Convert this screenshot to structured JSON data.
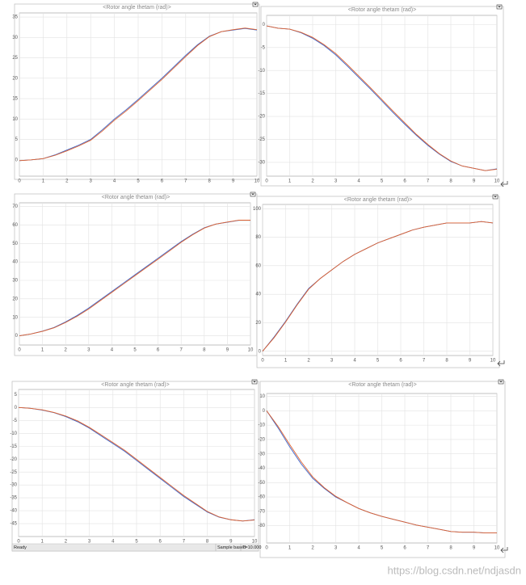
{
  "chart_data": [
    {
      "type": "line",
      "title": "<Rotor angle thetam (rad)>",
      "x": [
        0,
        0.5,
        1,
        1.5,
        2,
        2.5,
        3,
        3.5,
        4,
        4.5,
        5,
        5.5,
        6,
        6.5,
        7,
        7.5,
        8,
        8.5,
        9,
        9.5,
        10
      ],
      "xlim": [
        0,
        10
      ],
      "xticks": [
        0,
        1,
        2,
        3,
        4,
        5,
        6,
        7,
        8,
        9,
        10
      ],
      "ylim": [
        -4,
        36
      ],
      "yticks": [
        0,
        5,
        10,
        15,
        20,
        25,
        30,
        35
      ],
      "grid": true,
      "series": [
        {
          "color": "#3a62c8",
          "values": [
            -0.2,
            0,
            0.3,
            1.2,
            2.4,
            3.6,
            5,
            7.4,
            10,
            12.3,
            14.8,
            17.4,
            20,
            22.8,
            25.6,
            28.2,
            30.3,
            31.4,
            31.8,
            32.2,
            31.8
          ]
        },
        {
          "color": "#e0622e",
          "values": [
            -0.2,
            0,
            0.3,
            1.1,
            2.2,
            3.4,
            4.8,
            7.1,
            9.7,
            12,
            14.5,
            17.1,
            19.7,
            22.5,
            25.3,
            28,
            30.2,
            31.4,
            31.9,
            32.3,
            31.9
          ]
        }
      ]
    },
    {
      "type": "line",
      "title": "<Rotor angle thetam (rad)>",
      "x": [
        0,
        0.5,
        1,
        1.5,
        2,
        2.5,
        3,
        3.5,
        4,
        4.5,
        5,
        5.5,
        6,
        6.5,
        7,
        7.5,
        8,
        8.5,
        9,
        9.5,
        10
      ],
      "xlim": [
        0,
        10
      ],
      "xticks": [
        0,
        1,
        2,
        3,
        4,
        5,
        6,
        7,
        8,
        9,
        10
      ],
      "ylim": [
        -33,
        2
      ],
      "yticks": [
        0,
        -5,
        -10,
        -15,
        -20,
        -25,
        -30
      ],
      "grid": true,
      "series": [
        {
          "color": "#3a62c8",
          "values": [
            -0.3,
            -0.8,
            -1,
            -1.8,
            -3,
            -4.6,
            -6.6,
            -9,
            -11.5,
            -14,
            -16.6,
            -19.2,
            -21.7,
            -24.1,
            -26.3,
            -28.2,
            -29.8,
            -30.8,
            -31.3,
            -31.8,
            -31.4
          ]
        },
        {
          "color": "#e0622e",
          "values": [
            -0.3,
            -0.8,
            -1,
            -1.7,
            -2.8,
            -4.4,
            -6.3,
            -8.7,
            -11.2,
            -13.7,
            -16.3,
            -18.9,
            -21.4,
            -23.9,
            -26.1,
            -28.1,
            -29.7,
            -30.8,
            -31.3,
            -31.8,
            -31.5
          ]
        }
      ]
    },
    {
      "type": "line",
      "title": "<Rotor angle thetam (rad)>",
      "x": [
        0,
        0.5,
        1,
        1.5,
        2,
        2.5,
        3,
        3.5,
        4,
        4.5,
        5,
        5.5,
        6,
        6.5,
        7,
        7.5,
        8,
        8.5,
        9,
        9.5,
        10
      ],
      "xlim": [
        0,
        10
      ],
      "xticks": [
        0,
        1,
        2,
        3,
        4,
        5,
        6,
        7,
        8,
        9,
        10
      ],
      "ylim": [
        -5,
        72
      ],
      "yticks": [
        0,
        10,
        20,
        30,
        40,
        50,
        60,
        70
      ],
      "grid": true,
      "series": [
        {
          "color": "#3a62c8",
          "values": [
            0,
            1,
            2.5,
            4.5,
            7.5,
            11,
            15,
            19.5,
            24,
            28.5,
            33,
            37.5,
            42,
            46.5,
            51,
            55,
            58.5,
            60.5,
            61.5,
            62.5,
            62.5
          ]
        },
        {
          "color": "#e0622e",
          "values": [
            0,
            1,
            2.4,
            4.3,
            7.2,
            10.6,
            14.5,
            19,
            23.5,
            28,
            32.5,
            37,
            41.5,
            46,
            50.6,
            54.7,
            58.3,
            60.5,
            61.6,
            62.6,
            62.6
          ]
        }
      ]
    },
    {
      "type": "line",
      "title": "<Rotor angle thetam (rad)>",
      "x": [
        0,
        0.5,
        1,
        1.5,
        2,
        2.5,
        3,
        3.5,
        4,
        4.5,
        5,
        5.5,
        6,
        6.5,
        7,
        7.5,
        8,
        8.5,
        9,
        9.5,
        10
      ],
      "xlim": [
        0,
        10
      ],
      "xticks": [
        0,
        1,
        2,
        3,
        4,
        5,
        6,
        7,
        8,
        9,
        10
      ],
      "ylim": [
        -3,
        103
      ],
      "yticks": [
        0,
        20,
        40,
        60,
        80,
        100
      ],
      "grid": true,
      "series": [
        {
          "color": "#3a62c8",
          "values": [
            0,
            10,
            21,
            33,
            44,
            51,
            57,
            63,
            68,
            72,
            76,
            79,
            82,
            85,
            87,
            88.5,
            90,
            90,
            90,
            91,
            90
          ]
        },
        {
          "color": "#e0622e",
          "values": [
            0,
            9.5,
            20.5,
            32.5,
            43.5,
            51,
            57,
            63,
            68,
            72,
            76,
            79,
            82,
            85,
            87,
            88.5,
            90,
            90,
            90,
            91,
            90
          ]
        }
      ]
    },
    {
      "type": "line",
      "title": "<Rotor angle thetam (rad)>",
      "x": [
        0,
        0.5,
        1,
        1.5,
        2,
        2.5,
        3,
        3.5,
        4,
        4.5,
        5,
        5.5,
        6,
        6.5,
        7,
        7.5,
        8,
        8.5,
        9,
        9.5,
        10
      ],
      "xlim": [
        0,
        10
      ],
      "xticks": [
        0,
        1,
        2,
        3,
        4,
        5,
        6,
        7,
        8,
        9,
        10
      ],
      "ylim": [
        -50,
        7
      ],
      "yticks": [
        5,
        0,
        -5,
        -10,
        -15,
        -20,
        -25,
        -30,
        -35,
        -40,
        -45
      ],
      "grid": true,
      "series": [
        {
          "color": "#3a62c8",
          "values": [
            0,
            -0.3,
            -1,
            -2,
            -3.5,
            -5.5,
            -8,
            -11,
            -14,
            -17,
            -20.5,
            -24,
            -27.5,
            -31,
            -34.5,
            -37.5,
            -40.5,
            -42.5,
            -43.5,
            -44,
            -43.5
          ]
        },
        {
          "color": "#e0622e",
          "values": [
            0,
            -0.3,
            -0.9,
            -1.9,
            -3.3,
            -5.2,
            -7.7,
            -10.6,
            -13.6,
            -16.6,
            -20.1,
            -23.6,
            -27.1,
            -30.6,
            -34.1,
            -37.2,
            -40.3,
            -42.4,
            -43.5,
            -44,
            -43.6
          ]
        }
      ]
    },
    {
      "type": "line",
      "title": "<Rotor angle thetam (rad)>",
      "x": [
        0,
        0.5,
        1,
        1.5,
        2,
        2.5,
        3,
        3.5,
        4,
        4.5,
        5,
        5.5,
        6,
        6.5,
        7,
        7.5,
        8,
        8.5,
        9,
        9.5,
        10
      ],
      "xlim": [
        0,
        10
      ],
      "xticks": [
        0,
        1,
        2,
        3,
        4,
        5,
        6,
        7,
        8,
        9,
        10
      ],
      "ylim": [
        -92,
        12
      ],
      "yticks": [
        10,
        0,
        -10,
        -20,
        -30,
        -40,
        -50,
        -60,
        -70,
        -80
      ],
      "grid": true,
      "series": [
        {
          "color": "#3a62c8",
          "values": [
            0,
            -12,
            -25,
            -37,
            -47,
            -54,
            -60,
            -64,
            -68,
            -71,
            -73.5,
            -75.5,
            -77.5,
            -79.5,
            -81,
            -82.5,
            -84,
            -84.5,
            -84.5,
            -85,
            -85
          ]
        },
        {
          "color": "#e0622e",
          "values": [
            0,
            -11,
            -23.5,
            -35.5,
            -46,
            -53.5,
            -59.5,
            -64,
            -68,
            -71,
            -73.5,
            -75.5,
            -77.5,
            -79.5,
            -81,
            -82.5,
            -84,
            -84.5,
            -84.5,
            -85,
            -85
          ]
        }
      ]
    }
  ],
  "status_bar": {
    "left": "Ready",
    "middle": "Sample based",
    "right": "T=10.000"
  },
  "watermark": "https://blog.csdn.net/ndjasdn"
}
